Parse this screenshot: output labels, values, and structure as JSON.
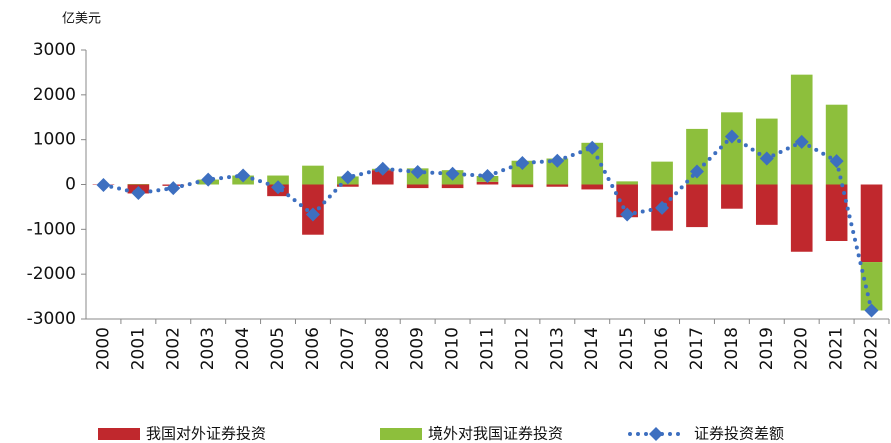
{
  "chart_data": {
    "type": "bar",
    "ylabel": "亿美元",
    "categories": [
      "2000",
      "2001",
      "2002",
      "2003",
      "2004",
      "2005",
      "2006",
      "2007",
      "2008",
      "2009",
      "2010",
      "2011",
      "2012",
      "2013",
      "2014",
      "2015",
      "2016",
      "2017",
      "2018",
      "2019",
      "2020",
      "2021",
      "2022"
    ],
    "series": [
      {
        "name": "我国对外证券投资",
        "type": "bar",
        "color": "#c0282d",
        "values": [
          -10,
          -200,
          -30,
          0,
          0,
          -260,
          -1120,
          -50,
          320,
          -80,
          -80,
          60,
          -60,
          -50,
          -110,
          -730,
          -1030,
          -950,
          -540,
          -900,
          -1500,
          -1260,
          -1730
        ]
      },
      {
        "name": "境外对我国证券投资",
        "type": "bar",
        "color": "#8dbf3c",
        "values": [
          0,
          10,
          0,
          110,
          200,
          200,
          420,
          180,
          30,
          360,
          320,
          130,
          530,
          580,
          930,
          70,
          510,
          1240,
          1610,
          1470,
          2450,
          1780,
          -1080
        ]
      },
      {
        "name": "证券投资差额",
        "type": "line",
        "color": "#3d6fc0",
        "values": [
          -10,
          -190,
          -80,
          110,
          200,
          -60,
          -670,
          160,
          350,
          280,
          240,
          190,
          480,
          530,
          820,
          -670,
          -520,
          290,
          1070,
          580,
          950,
          520,
          -2810
        ]
      }
    ],
    "ylim": [
      -3000,
      3000
    ],
    "yticks": [
      -3000,
      -2000,
      -1000,
      0,
      1000,
      2000,
      3000
    ],
    "grid": false,
    "legend": "bottom"
  }
}
